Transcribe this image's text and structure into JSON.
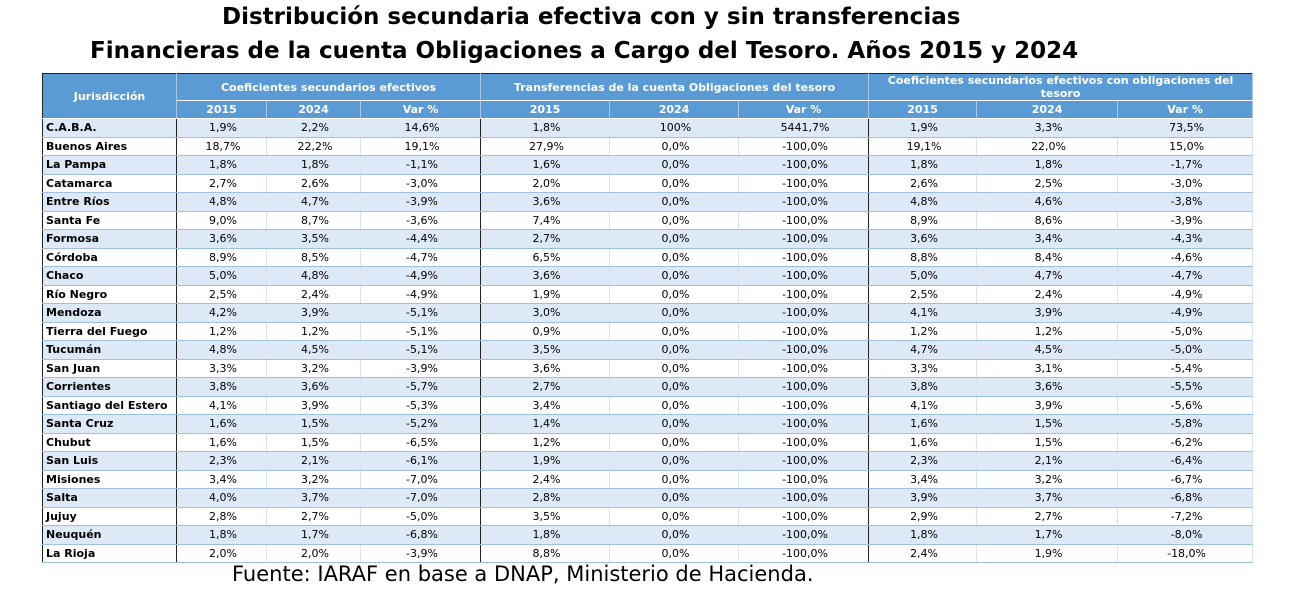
{
  "title": {
    "line1": "Distribución secundaria efectiva con y sin transferencias",
    "line2": "Financieras de la cuenta Obligaciones a Cargo del Tesoro.  Años 2015 y 2024"
  },
  "table": {
    "first_header": "Jurisdicción",
    "groups": [
      "Coeficientes secundarios efectivos",
      "Transferencias de la cuenta Obligaciones del tesoro",
      "Coeficientes secundarios efectivos con obligaciones del tesoro"
    ],
    "subheaders": [
      "2015",
      "2024",
      "Var %",
      "2015",
      "2024",
      "Var %",
      "2015",
      "2024",
      "Var %"
    ],
    "rows": [
      [
        "C.A.B.A.",
        "1,9%",
        "2,2%",
        "14,6%",
        "1,8%",
        "100%",
        "5441,7%",
        "1,9%",
        "3,3%",
        "73,5%"
      ],
      [
        "Buenos Aires",
        "18,7%",
        "22,2%",
        "19,1%",
        "27,9%",
        "0,0%",
        "-100,0%",
        "19,1%",
        "22,0%",
        "15,0%"
      ],
      [
        "La Pampa",
        "1,8%",
        "1,8%",
        "-1,1%",
        "1,6%",
        "0,0%",
        "-100,0%",
        "1,8%",
        "1,8%",
        "-1,7%"
      ],
      [
        "Catamarca",
        "2,7%",
        "2,6%",
        "-3,0%",
        "2,0%",
        "0,0%",
        "-100,0%",
        "2,6%",
        "2,5%",
        "-3,0%"
      ],
      [
        "Entre Ríos",
        "4,8%",
        "4,7%",
        "-3,9%",
        "3,6%",
        "0,0%",
        "-100,0%",
        "4,8%",
        "4,6%",
        "-3,8%"
      ],
      [
        "Santa Fe",
        "9,0%",
        "8,7%",
        "-3,6%",
        "7,4%",
        "0,0%",
        "-100,0%",
        "8,9%",
        "8,6%",
        "-3,9%"
      ],
      [
        "Formosa",
        "3,6%",
        "3,5%",
        "-4,4%",
        "2,7%",
        "0,0%",
        "-100,0%",
        "3,6%",
        "3,4%",
        "-4,3%"
      ],
      [
        "Córdoba",
        "8,9%",
        "8,5%",
        "-4,7%",
        "6,5%",
        "0,0%",
        "-100,0%",
        "8,8%",
        "8,4%",
        "-4,6%"
      ],
      [
        "Chaco",
        "5,0%",
        "4,8%",
        "-4,9%",
        "3,6%",
        "0,0%",
        "-100,0%",
        "5,0%",
        "4,7%",
        "-4,7%"
      ],
      [
        "Río Negro",
        "2,5%",
        "2,4%",
        "-4,9%",
        "1,9%",
        "0,0%",
        "-100,0%",
        "2,5%",
        "2,4%",
        "-4,9%"
      ],
      [
        "Mendoza",
        "4,2%",
        "3,9%",
        "-5,1%",
        "3,0%",
        "0,0%",
        "-100,0%",
        "4,1%",
        "3,9%",
        "-4,9%"
      ],
      [
        "Tierra del Fuego",
        "1,2%",
        "1,2%",
        "-5,1%",
        "0,9%",
        "0,0%",
        "-100,0%",
        "1,2%",
        "1,2%",
        "-5,0%"
      ],
      [
        "Tucumán",
        "4,8%",
        "4,5%",
        "-5,1%",
        "3,5%",
        "0,0%",
        "-100,0%",
        "4,7%",
        "4,5%",
        "-5,0%"
      ],
      [
        "San Juan",
        "3,3%",
        "3,2%",
        "-3,9%",
        "3,6%",
        "0,0%",
        "-100,0%",
        "3,3%",
        "3,1%",
        "-5,4%"
      ],
      [
        "Corrientes",
        "3,8%",
        "3,6%",
        "-5,7%",
        "2,7%",
        "0,0%",
        "-100,0%",
        "3,8%",
        "3,6%",
        "-5,5%"
      ],
      [
        "Santiago del Estero",
        "4,1%",
        "3,9%",
        "-5,3%",
        "3,4%",
        "0,0%",
        "-100,0%",
        "4,1%",
        "3,9%",
        "-5,6%"
      ],
      [
        "Santa Cruz",
        "1,6%",
        "1,5%",
        "-5,2%",
        "1,4%",
        "0,0%",
        "-100,0%",
        "1,6%",
        "1,5%",
        "-5,8%"
      ],
      [
        "Chubut",
        "1,6%",
        "1,5%",
        "-6,5%",
        "1,2%",
        "0,0%",
        "-100,0%",
        "1,6%",
        "1,5%",
        "-6,2%"
      ],
      [
        "San Luis",
        "2,3%",
        "2,1%",
        "-6,1%",
        "1,9%",
        "0,0%",
        "-100,0%",
        "2,3%",
        "2,1%",
        "-6,4%"
      ],
      [
        "Misiones",
        "3,4%",
        "3,2%",
        "-7,0%",
        "2,4%",
        "0,0%",
        "-100,0%",
        "3,4%",
        "3,2%",
        "-6,7%"
      ],
      [
        "Salta",
        "4,0%",
        "3,7%",
        "-7,0%",
        "2,8%",
        "0,0%",
        "-100,0%",
        "3,9%",
        "3,7%",
        "-6,8%"
      ],
      [
        "Jujuy",
        "2,8%",
        "2,7%",
        "-5,0%",
        "3,5%",
        "0,0%",
        "-100,0%",
        "2,9%",
        "2,7%",
        "-7,2%"
      ],
      [
        "Neuquén",
        "1,8%",
        "1,7%",
        "-6,8%",
        "1,8%",
        "0,0%",
        "-100,0%",
        "1,8%",
        "1,7%",
        "-8,0%"
      ],
      [
        "La Rioja",
        "2,0%",
        "2,0%",
        "-3,9%",
        "8,8%",
        "0,0%",
        "-100,0%",
        "2,4%",
        "1,9%",
        "-18,0%"
      ]
    ]
  },
  "source": "Fuente: IARAF en base a DNAP, Ministerio de Hacienda.",
  "colors": {
    "header": "#5b9bd5",
    "row_alt": "#dde9f6"
  }
}
